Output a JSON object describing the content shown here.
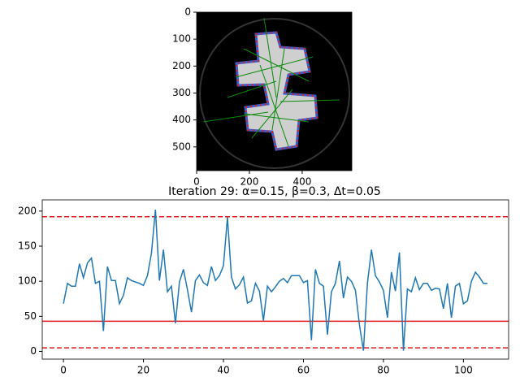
{
  "chart_data": [
    {
      "type": "image",
      "xlim": [
        0,
        588
      ],
      "ylim": [
        588,
        0
      ],
      "xticks": [
        0,
        200,
        400
      ],
      "yticks": [
        0,
        100,
        200,
        300,
        400,
        500
      ]
    },
    {
      "type": "line",
      "title": "Iteration 29: α=0.15, β=0.3, Δt=0.05",
      "xlim": [
        -5.3,
        111.3
      ],
      "ylim": [
        -11,
        216
      ],
      "xticks": [
        0,
        20,
        40,
        60,
        80,
        100
      ],
      "yticks": [
        0,
        50,
        100,
        150,
        200
      ],
      "series": [
        {
          "color": "#1f77b4",
          "values": [
            68,
            97,
            93,
            93,
            125,
            105,
            126,
            133,
            97,
            100,
            29,
            121,
            101,
            101,
            68,
            80,
            105,
            101,
            99,
            97,
            94,
            108,
            140,
            202,
            101,
            145,
            85,
            93,
            40,
            99,
            117,
            88,
            56,
            101,
            109,
            98,
            94,
            121,
            101,
            108,
            122,
            191,
            106,
            89,
            95,
            106,
            69,
            72,
            97,
            86,
            44,
            93,
            85,
            92,
            100,
            104,
            98,
            108,
            108,
            108,
            98,
            101,
            16,
            117,
            97,
            93,
            24,
            85,
            97,
            129,
            76,
            106,
            100,
            87,
            38,
            1,
            97,
            145,
            108,
            99,
            87,
            48,
            113,
            86,
            141,
            1,
            89,
            85,
            105,
            88,
            97,
            97,
            87,
            90,
            89,
            61,
            97,
            48,
            93,
            97,
            68,
            72,
            100,
            113,
            106,
            97,
            97
          ]
        }
      ],
      "hlines": [
        {
          "value": 192,
          "color": "#e41a1c",
          "style": "dashed"
        },
        {
          "value": 43,
          "color": "#e41a1c",
          "style": "solid"
        },
        {
          "value": 5,
          "color": "#e41a1c",
          "style": "dashed"
        }
      ]
    }
  ]
}
